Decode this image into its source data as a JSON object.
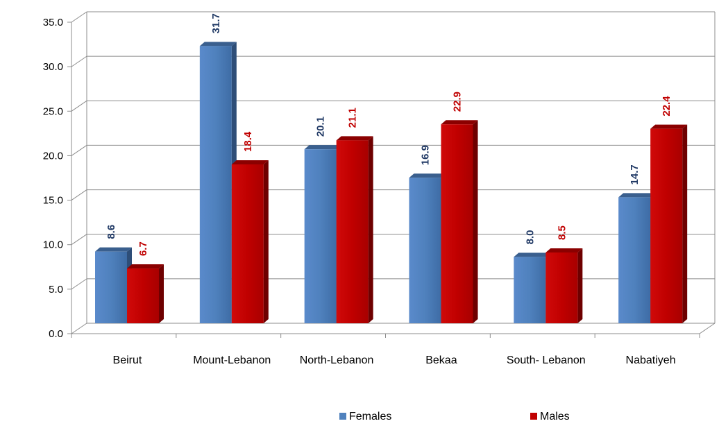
{
  "chart_data": {
    "type": "bar",
    "title": "",
    "xlabel": "",
    "ylabel": "",
    "categories": [
      "Beirut",
      "Mount-Lebanon",
      "North-Lebanon",
      "Bekaa",
      "South- Lebanon",
      "Nabatiyeh"
    ],
    "series": [
      {
        "name": "Females",
        "color": "#4F81BD",
        "label_color": "#1F3864",
        "values": [
          8.6,
          31.7,
          20.1,
          16.9,
          8.0,
          14.7
        ]
      },
      {
        "name": "Males",
        "color": "#C00000",
        "label_color": "#C00000",
        "values": [
          6.7,
          18.4,
          21.1,
          22.9,
          8.5,
          22.4
        ]
      }
    ],
    "ylim": [
      0,
      35
    ],
    "yticks": [
      "0.0",
      "5.0",
      "10.0",
      "15.0",
      "20.0",
      "25.0",
      "30.0",
      "35.0"
    ],
    "grid": true,
    "legend_position": "bottom",
    "style": "3d-clustered-column"
  }
}
